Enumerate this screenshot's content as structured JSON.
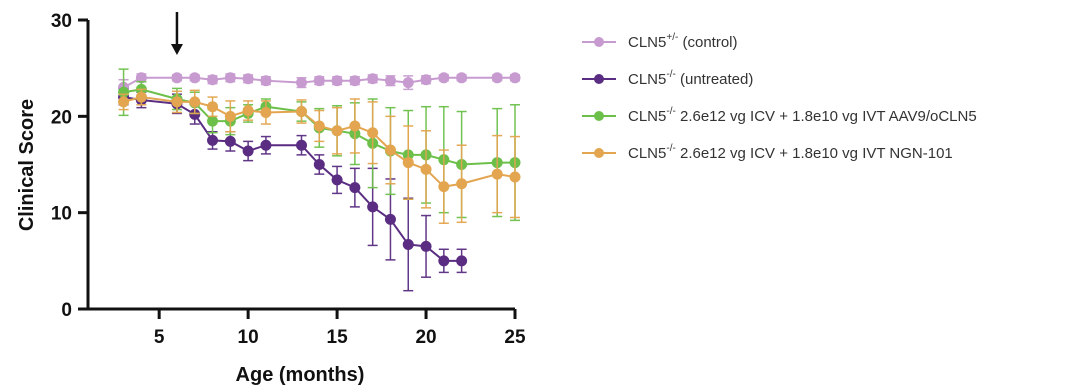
{
  "chart_data": {
    "type": "line",
    "title": "",
    "xlabel": "Age (months)",
    "ylabel": "Clinical Score",
    "xlim": [
      1,
      25
    ],
    "ylim": [
      0,
      30
    ],
    "x_ticks": [
      "5",
      "10",
      "15",
      "20",
      "25"
    ],
    "y_ticks": [
      "0",
      "10",
      "20",
      "30"
    ],
    "grid": false,
    "legend_position": "right",
    "annotations": [
      {
        "type": "arrow",
        "x": 6,
        "direction": "down"
      }
    ],
    "series": [
      {
        "name": "CLN5+/- (control)",
        "legend": {
          "prefix": "CLN5",
          "sup": "+/-",
          "suffix": " (control)"
        },
        "color": "#c79bd0",
        "points": [
          {
            "x": 3,
            "y": 23.0,
            "err": 0.8
          },
          {
            "x": 4,
            "y": 24.0,
            "err": 0.4
          },
          {
            "x": 6,
            "y": 24.0,
            "err": 0.3
          },
          {
            "x": 7,
            "y": 24.0,
            "err": 0.3
          },
          {
            "x": 8,
            "y": 23.8,
            "err": 0.4
          },
          {
            "x": 9,
            "y": 24.0,
            "err": 0.4
          },
          {
            "x": 10,
            "y": 23.9,
            "err": 0.4
          },
          {
            "x": 11,
            "y": 23.7,
            "err": 0.4
          },
          {
            "x": 13,
            "y": 23.5,
            "err": 0.5
          },
          {
            "x": 14,
            "y": 23.7,
            "err": 0.4
          },
          {
            "x": 15,
            "y": 23.7,
            "err": 0.4
          },
          {
            "x": 16,
            "y": 23.7,
            "err": 0.4
          },
          {
            "x": 17,
            "y": 23.9,
            "err": 0.4
          },
          {
            "x": 18,
            "y": 23.7,
            "err": 0.5
          },
          {
            "x": 19,
            "y": 23.5,
            "err": 0.7
          },
          {
            "x": 20,
            "y": 23.8,
            "err": 0.4
          },
          {
            "x": 21,
            "y": 24.0,
            "err": 0.3
          },
          {
            "x": 22,
            "y": 24.0,
            "err": 0.3
          },
          {
            "x": 24,
            "y": 24.0,
            "err": 0.3
          },
          {
            "x": 25,
            "y": 24.0,
            "err": 0.3
          }
        ]
      },
      {
        "name": "CLN5-/- (untreated)",
        "legend": {
          "prefix": "CLN5",
          "sup": "-/-",
          "suffix": " (untreated)"
        },
        "color": "#5a2d82",
        "points": [
          {
            "x": 3,
            "y": 22.0,
            "err": 0.8
          },
          {
            "x": 4,
            "y": 21.7,
            "err": 0.8
          },
          {
            "x": 6,
            "y": 21.3,
            "err": 1.0
          },
          {
            "x": 7,
            "y": 20.2,
            "err": 1.0
          },
          {
            "x": 8,
            "y": 17.5,
            "err": 0.9
          },
          {
            "x": 9,
            "y": 17.4,
            "err": 1.0
          },
          {
            "x": 10,
            "y": 16.4,
            "err": 1.0
          },
          {
            "x": 11,
            "y": 17.0,
            "err": 0.9
          },
          {
            "x": 13,
            "y": 17.0,
            "err": 1.0
          },
          {
            "x": 14,
            "y": 15.0,
            "err": 1.0
          },
          {
            "x": 15,
            "y": 13.4,
            "err": 1.4
          },
          {
            "x": 16,
            "y": 12.6,
            "err": 2.0
          },
          {
            "x": 17,
            "y": 10.6,
            "err": 4.0
          },
          {
            "x": 18,
            "y": 9.3,
            "err": 4.2
          },
          {
            "x": 19,
            "y": 6.7,
            "err": 4.8
          },
          {
            "x": 20,
            "y": 6.5,
            "err": 3.2
          },
          {
            "x": 21,
            "y": 5.0,
            "err": 1.2
          },
          {
            "x": 22,
            "y": 5.0,
            "err": 1.2
          }
        ]
      },
      {
        "name": "CLN5-/- 2.6e12 vg ICV + 1.8e10 vg IVT AAV9/oCLN5",
        "legend": {
          "prefix": "CLN5",
          "sup": "-/-",
          "suffix": " 2.6e12 vg ICV  + 1.8e10 vg IVT AAV9/oCLN5"
        },
        "color": "#6cc04a",
        "points": [
          {
            "x": 3,
            "y": 22.5,
            "err": 2.4
          },
          {
            "x": 4,
            "y": 22.8,
            "err": 0.8
          },
          {
            "x": 6,
            "y": 21.8,
            "err": 1.1
          },
          {
            "x": 7,
            "y": 21.4,
            "err": 1.1
          },
          {
            "x": 8,
            "y": 19.5,
            "err": 1.2
          },
          {
            "x": 9,
            "y": 19.5,
            "err": 1.4
          },
          {
            "x": 10,
            "y": 20.3,
            "err": 0.9
          },
          {
            "x": 11,
            "y": 21.0,
            "err": 0.8
          },
          {
            "x": 13,
            "y": 20.5,
            "err": 1.0
          },
          {
            "x": 14,
            "y": 18.8,
            "err": 2.0
          },
          {
            "x": 15,
            "y": 18.5,
            "err": 2.6
          },
          {
            "x": 16,
            "y": 18.2,
            "err": 3.2
          },
          {
            "x": 17,
            "y": 17.2,
            "err": 4.6
          },
          {
            "x": 18,
            "y": 16.4,
            "err": 4.5
          },
          {
            "x": 19,
            "y": 16.0,
            "err": 4.6
          },
          {
            "x": 20,
            "y": 16.0,
            "err": 5.0
          },
          {
            "x": 21,
            "y": 15.5,
            "err": 5.5
          },
          {
            "x": 22,
            "y": 15.0,
            "err": 5.5
          },
          {
            "x": 24,
            "y": 15.2,
            "err": 5.6
          },
          {
            "x": 25,
            "y": 15.2,
            "err": 6.0
          }
        ]
      },
      {
        "name": "CLN5-/- 2.6e12 vg ICV + 1.8e10 vg IVT NGN-101",
        "legend": {
          "prefix": "CLN5",
          "sup": "-/-",
          "suffix": " 2.6e12 vg ICV  + 1.8e10 vg IVT NGN-101"
        },
        "color": "#e3a54f",
        "points": [
          {
            "x": 3,
            "y": 21.5,
            "err": 0.8
          },
          {
            "x": 4,
            "y": 22.0,
            "err": 0.8
          },
          {
            "x": 6,
            "y": 21.5,
            "err": 1.1
          },
          {
            "x": 7,
            "y": 21.5,
            "err": 1.2
          },
          {
            "x": 8,
            "y": 21.0,
            "err": 1.0
          },
          {
            "x": 9,
            "y": 20.0,
            "err": 1.6
          },
          {
            "x": 10,
            "y": 20.6,
            "err": 1.0
          },
          {
            "x": 11,
            "y": 20.4,
            "err": 1.2
          },
          {
            "x": 13,
            "y": 20.5,
            "err": 1.2
          },
          {
            "x": 14,
            "y": 19.0,
            "err": 1.6
          },
          {
            "x": 15,
            "y": 18.5,
            "err": 2.4
          },
          {
            "x": 16,
            "y": 19.0,
            "err": 2.8
          },
          {
            "x": 17,
            "y": 18.3,
            "err": 3.2
          },
          {
            "x": 18,
            "y": 16.5,
            "err": 3.5
          },
          {
            "x": 19,
            "y": 15.2,
            "err": 3.8
          },
          {
            "x": 20,
            "y": 14.5,
            "err": 4.0
          },
          {
            "x": 21,
            "y": 12.7,
            "err": 3.8
          },
          {
            "x": 22,
            "y": 13.0,
            "err": 4.0
          },
          {
            "x": 24,
            "y": 14.0,
            "err": 4.0
          },
          {
            "x": 25,
            "y": 13.7,
            "err": 4.2
          }
        ]
      }
    ]
  }
}
